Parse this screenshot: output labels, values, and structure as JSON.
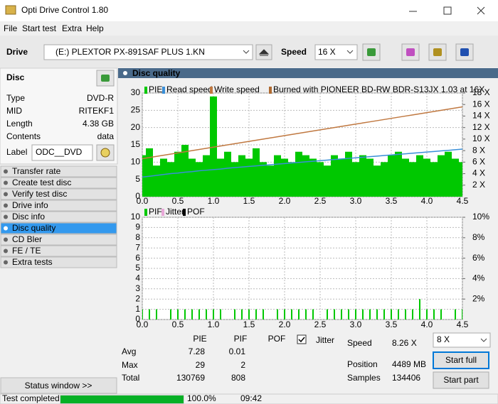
{
  "window": {
    "title": "Opti Drive Control 1.80"
  },
  "menu": [
    "File",
    "Start test",
    "Extra",
    "Help"
  ],
  "toolbar": {
    "drive_label": "Drive",
    "drive": "(E:)   PLEXTOR PX-891SAF PLUS 1.KN",
    "speed_label": "Speed",
    "speed": "16 X"
  },
  "disc": {
    "title": "Disc",
    "fields": [
      {
        "label": "Type",
        "value": "DVD-R"
      },
      {
        "label": "MID",
        "value": "RITEKF1"
      },
      {
        "label": "Length",
        "value": "4.38 GB"
      },
      {
        "label": "Contents",
        "value": "data"
      }
    ],
    "label_label": "Label",
    "label_value": "ODC__DVD"
  },
  "nav": [
    "Transfer rate",
    "Create test disc",
    "Verify test disc",
    "Drive info",
    "Disc info",
    "Disc quality",
    "CD Bler",
    "FE / TE",
    "Extra tests"
  ],
  "nav_selected": 5,
  "status_window": "Status window >>",
  "panel_title": "Disc quality",
  "chart_data": [
    {
      "type": "bar",
      "annotation": "Burned with PIONEER BD-RW  BDR-S13JX 1.03 at 16X",
      "annotation_color": "#b06a30",
      "x": [
        0,
        0.1,
        0.2,
        0.3,
        0.4,
        0.5,
        0.6,
        0.7,
        0.8,
        0.9,
        1,
        1.1,
        1.2,
        1.3,
        1.4,
        1.5,
        1.6,
        1.7,
        1.8,
        1.9,
        2,
        2.1,
        2.2,
        2.3,
        2.4,
        2.5,
        2.6,
        2.7,
        2.8,
        2.9,
        3,
        3.1,
        3.2,
        3.3,
        3.4,
        3.5,
        3.6,
        3.7,
        3.8,
        3.9,
        4,
        4.1,
        4.2,
        4.3,
        4.4,
        4.5
      ],
      "series": [
        {
          "name": "PIE",
          "color": "#00c800",
          "type": "bar",
          "values": [
            12,
            14,
            9,
            11,
            10,
            13,
            15,
            11,
            10,
            12,
            29,
            11,
            13,
            10,
            12,
            11,
            14,
            10,
            9,
            12,
            11,
            10,
            13,
            12,
            11,
            10,
            9,
            12,
            11,
            13,
            10,
            12,
            11,
            9,
            10,
            12,
            13,
            11,
            10,
            12,
            11,
            10,
            12,
            13,
            11,
            10
          ]
        },
        {
          "name": "Read speed",
          "color": "#3a8fd8",
          "type": "line",
          "axis": "y2",
          "values": [
            3.4,
            3.55,
            3.7,
            3.85,
            4,
            4.1,
            4.25,
            4.35,
            4.5,
            4.6,
            4.7,
            4.8,
            4.95,
            5.05,
            5.15,
            5.25,
            5.35,
            5.45,
            5.55,
            5.65,
            5.75,
            5.85,
            5.95,
            6.05,
            6.15,
            6.25,
            6.35,
            6.45,
            6.55,
            6.65,
            6.75,
            6.85,
            6.95,
            7.05,
            7.15,
            7.25,
            7.35,
            7.45,
            7.55,
            7.65,
            7.75,
            7.85,
            7.95,
            8.05,
            8.15,
            8.26
          ]
        },
        {
          "name": "Write speed",
          "color": "#c07840",
          "type": "line",
          "axis": "y2",
          "values": [
            6.6,
            6.8,
            7,
            7.2,
            7.4,
            7.6,
            7.8,
            8,
            8.2,
            8.4,
            8.6,
            8.8,
            9,
            9.2,
            9.4,
            9.6,
            9.8,
            10,
            10.2,
            10.4,
            10.6,
            10.8,
            11,
            11.2,
            11.4,
            11.6,
            11.8,
            12,
            12.2,
            12.4,
            12.6,
            12.8,
            13,
            13.2,
            13.4,
            13.6,
            13.8,
            14,
            14.2,
            14.4,
            14.6,
            14.8,
            15,
            15.2,
            15.4,
            15.6
          ]
        }
      ],
      "xlim": [
        0,
        4.5
      ],
      "xticks": [
        {
          "value": 0,
          "label": "0.0"
        },
        0.5,
        {
          "value": 1,
          "label": "1.0"
        },
        1.5,
        {
          "value": 2,
          "label": "2.0"
        },
        2.5,
        {
          "value": 3,
          "label": "3.0"
        },
        3.5,
        {
          "value": 4,
          "label": "4.0"
        },
        4.5
      ],
      "ylim": [
        0,
        30
      ],
      "yticks": [
        0,
        5,
        10,
        15,
        20,
        25,
        30
      ],
      "y2lim": [
        0,
        18
      ],
      "y2ticks": [
        {
          "value": 2,
          "label": "2 X"
        },
        {
          "value": 4,
          "label": "4 X"
        },
        {
          "value": 6,
          "label": "6 X"
        },
        {
          "value": 8,
          "label": "8 X"
        },
        {
          "value": 10,
          "label": "10 X"
        },
        {
          "value": 12,
          "label": "12 X"
        },
        {
          "value": 14,
          "label": "14 X"
        },
        {
          "value": 16,
          "label": "16 X"
        },
        {
          "value": 18,
          "label": "18 X"
        }
      ],
      "grid": true
    },
    {
      "type": "bar",
      "x": [
        0,
        0.1,
        0.2,
        0.3,
        0.4,
        0.5,
        0.6,
        0.7,
        0.8,
        0.9,
        1,
        1.1,
        1.2,
        1.3,
        1.4,
        1.5,
        1.6,
        1.7,
        1.8,
        1.9,
        2,
        2.1,
        2.2,
        2.3,
        2.4,
        2.5,
        2.6,
        2.7,
        2.8,
        2.9,
        3,
        3.1,
        3.2,
        3.3,
        3.4,
        3.5,
        3.6,
        3.7,
        3.8,
        3.9,
        4,
        4.1,
        4.2,
        4.3,
        4.4,
        4.5
      ],
      "series": [
        {
          "name": "PIF",
          "color": "#00c800",
          "type": "bar",
          "values": [
            1,
            1,
            1,
            0,
            1,
            1,
            1,
            1,
            1,
            1,
            1,
            1,
            0,
            1,
            1,
            1,
            1,
            1,
            0,
            1,
            1,
            1,
            1,
            1,
            1,
            0,
            1,
            1,
            1,
            1,
            1,
            1,
            1,
            1,
            1,
            1,
            1,
            1,
            1,
            2,
            1,
            1,
            1,
            0,
            1,
            1
          ]
        },
        {
          "name": "Jitter",
          "color": "#e8a8d8",
          "type": "line",
          "axis": "y2",
          "values": [
            null,
            null,
            null,
            null,
            null,
            null,
            null,
            null,
            null,
            null,
            null,
            null,
            null,
            null,
            null,
            null,
            null,
            null,
            null,
            null,
            null,
            null,
            null,
            null,
            null,
            null,
            null,
            null,
            null,
            null,
            null,
            null,
            null,
            null,
            null,
            null,
            null,
            null,
            null,
            null,
            null,
            null,
            null,
            null,
            null,
            null
          ]
        },
        {
          "name": "POF",
          "color": "#000000",
          "type": "bar",
          "values": [
            null,
            null,
            null,
            null,
            null,
            null,
            null,
            null,
            null,
            null,
            null,
            null,
            null,
            null,
            null,
            null,
            null,
            null,
            null,
            null,
            null,
            null,
            null,
            null,
            null,
            null,
            null,
            null,
            null,
            null,
            null,
            null,
            null,
            null,
            null,
            null,
            null,
            null,
            null,
            null,
            null,
            null,
            null,
            null,
            null,
            null
          ]
        }
      ],
      "xlim": [
        0,
        4.5
      ],
      "xticks": [
        {
          "value": 0,
          "label": "0.0"
        },
        0.5,
        {
          "value": 1,
          "label": "1.0"
        },
        1.5,
        {
          "value": 2,
          "label": "2.0"
        },
        2.5,
        {
          "value": 3,
          "label": "3.0"
        },
        3.5,
        {
          "value": 4,
          "label": "4.0"
        },
        4.5
      ],
      "ylim": [
        0,
        10
      ],
      "yticks": [
        0,
        1,
        2,
        3,
        4,
        5,
        6,
        7,
        8,
        9,
        10
      ],
      "y2lim": [
        0,
        10
      ],
      "y2ticks": [
        {
          "value": 2,
          "label": "2%"
        },
        {
          "value": 4,
          "label": "4%"
        },
        {
          "value": 6,
          "label": "6%"
        },
        {
          "value": 8,
          "label": "8%"
        },
        {
          "value": 10,
          "label": "10%"
        }
      ],
      "grid": true
    }
  ],
  "stats": {
    "columns": [
      "PIE",
      "PIF",
      "POF"
    ],
    "jitter": {
      "label": "Jitter",
      "checked": true
    },
    "rows": [
      {
        "label": "Avg",
        "values": [
          7.28,
          0.01
        ]
      },
      {
        "label": "Max",
        "values": [
          29,
          2
        ]
      },
      {
        "label": "Total",
        "values": [
          130769,
          808
        ]
      }
    ],
    "info": [
      {
        "label": "Speed",
        "value": "8.26 X"
      },
      {
        "label": "Position",
        "value": "4489 MB"
      },
      {
        "label": "Samples",
        "value": 134406
      }
    ],
    "speed_select": "8 X",
    "buttons": [
      "Start full",
      "Start part"
    ]
  },
  "status_bar": {
    "text": "Test completed",
    "progress": 100,
    "progress_label": "100.0%",
    "time": "09:42"
  }
}
